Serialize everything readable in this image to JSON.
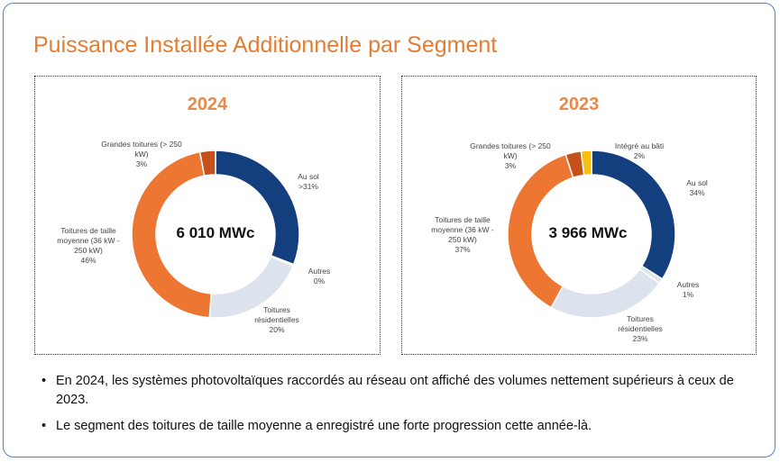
{
  "title": "Puissance Installée Additionnelle par Segment",
  "chart_data": [
    {
      "type": "pie",
      "title": "2024",
      "center_label": "6 010 MWc",
      "slices": [
        {
          "label": "Au sol",
          "value_label": ">31%",
          "value": 31,
          "color": "#143f7f"
        },
        {
          "label": "Autres",
          "value_label": "0%",
          "value": 0.3,
          "color": "#dde3ec"
        },
        {
          "label": "Toitures résidentielles",
          "value_label": "20%",
          "value": 20,
          "color": "#dde3ec"
        },
        {
          "label": "Toitures de taille moyenne (36 kW - 250 kW)",
          "value_label": "46%",
          "value": 46,
          "color": "#ed7632"
        },
        {
          "label": "Grandes toitures (> 250 kW)",
          "value_label": "3%",
          "value": 3,
          "color": "#c4511a"
        }
      ]
    },
    {
      "type": "pie",
      "title": "2023",
      "center_label": "3 966 MWc",
      "slices": [
        {
          "label": "Au sol",
          "value_label": "34%",
          "value": 34,
          "color": "#143f7f"
        },
        {
          "label": "Autres",
          "value_label": "1%",
          "value": 1,
          "color": "#dde3ec"
        },
        {
          "label": "Toitures résidentielles",
          "value_label": "23%",
          "value": 23,
          "color": "#dde3ec"
        },
        {
          "label": "Toitures de taille moyenne (36 kW - 250 kW)",
          "value_label": "37%",
          "value": 37,
          "color": "#ed7632"
        },
        {
          "label": "Grandes toitures (> 250 kW)",
          "value_label": "3%",
          "value": 3,
          "color": "#c4511a"
        },
        {
          "label": "Intégré au bâti",
          "value_label": "2%",
          "value": 2,
          "color": "#f5c013"
        }
      ]
    }
  ],
  "bullets": [
    "En 2024, les systèmes photovoltaïques raccordés au réseau ont affiché des volumes nettement supérieurs à ceux de 2023.",
    "Le segment des toitures de taille moyenne a enregistré une forte progression cette année-là."
  ]
}
